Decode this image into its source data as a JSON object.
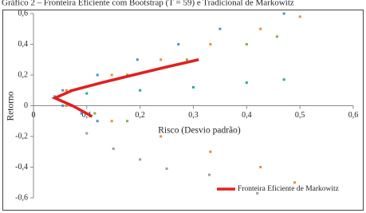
{
  "chart_data": {
    "type": "scatter",
    "title": "Gráfico 2 – Fronteira Eficiente com Bootstrap (T = 59) e Tradicional de Markowitz",
    "x_label": "Risco (Desvio padrão)",
    "y_label": "Retorno",
    "xlim": [
      0,
      0.6
    ],
    "ylim": [
      -0.6,
      0.6
    ],
    "xticks": [
      {
        "value": 0,
        "label": "0"
      },
      {
        "value": 0.1,
        "label": "0,1"
      },
      {
        "value": 0.2,
        "label": "0,2"
      },
      {
        "value": 0.3,
        "label": "0,3"
      },
      {
        "value": 0.4,
        "label": "0,4"
      },
      {
        "value": 0.5,
        "label": "0,5"
      },
      {
        "value": 0.6,
        "label": "0,6"
      }
    ],
    "yticks": [
      {
        "value": -0.6,
        "label": "-0,6"
      },
      {
        "value": -0.4,
        "label": "-0,4"
      },
      {
        "value": -0.2,
        "label": "-0,2"
      },
      {
        "value": 0,
        "label": "0"
      },
      {
        "value": 0.2,
        "label": "0,2"
      },
      {
        "value": 0.4,
        "label": "0,4"
      },
      {
        "value": 0.6,
        "label": "0,6"
      }
    ],
    "grid": false,
    "legend": "lower right",
    "series": [
      {
        "color": "#f08a3c",
        "x": [
          0.04,
          0.062,
          0.147,
          0.239,
          0.332,
          0.426,
          0.5,
          0.062,
          0.147,
          0.239,
          0.332,
          0.426,
          0.49
        ],
        "values": [
          0.05,
          0.1,
          0.2,
          0.3,
          0.4,
          0.5,
          0.58,
          0,
          -0.1,
          -0.2,
          -0.3,
          -0.4,
          -0.5
        ]
      },
      {
        "color": "#7cb342",
        "x": [
          0.045,
          0.07,
          0.176,
          0.288,
          0.4,
          0.457,
          0.07,
          0.115,
          0.176
        ],
        "values": [
          0.05,
          0.1,
          0.2,
          0.3,
          0.4,
          0.45,
          0,
          -0.05,
          -0.1
        ]
      },
      {
        "color": "#4a90c8",
        "x": [
          0.04,
          0.055,
          0.12,
          0.195,
          0.272,
          0.35,
          0.47,
          0.055,
          0.09,
          0.12
        ],
        "values": [
          0.06,
          0.1,
          0.2,
          0.3,
          0.4,
          0.5,
          0.6,
          0,
          -0.05,
          -0.1
        ]
      },
      {
        "color": "#9e9e9e",
        "x": [
          0.1,
          0.15,
          0.2,
          0.25,
          0.33,
          0.42
        ],
        "values": [
          -0.18,
          -0.28,
          -0.35,
          -0.41,
          -0.45,
          -0.57
        ]
      },
      {
        "color": "#26a69a",
        "x": [
          0.1,
          0.2,
          0.3,
          0.4,
          0.47
        ],
        "values": [
          0.08,
          0.1,
          0.12,
          0.15,
          0.17
        ]
      },
      {
        "type": "line",
        "name": "Fronteira Eficiente de Markowitz",
        "color": "#e02020",
        "x": [
          0.11,
          0.073,
          0.04,
          0.073,
          0.128,
          0.187,
          0.247,
          0.31
        ],
        "values": [
          -0.07,
          0,
          0.05,
          0.1,
          0.15,
          0.2,
          0.25,
          0.3
        ]
      }
    ]
  }
}
